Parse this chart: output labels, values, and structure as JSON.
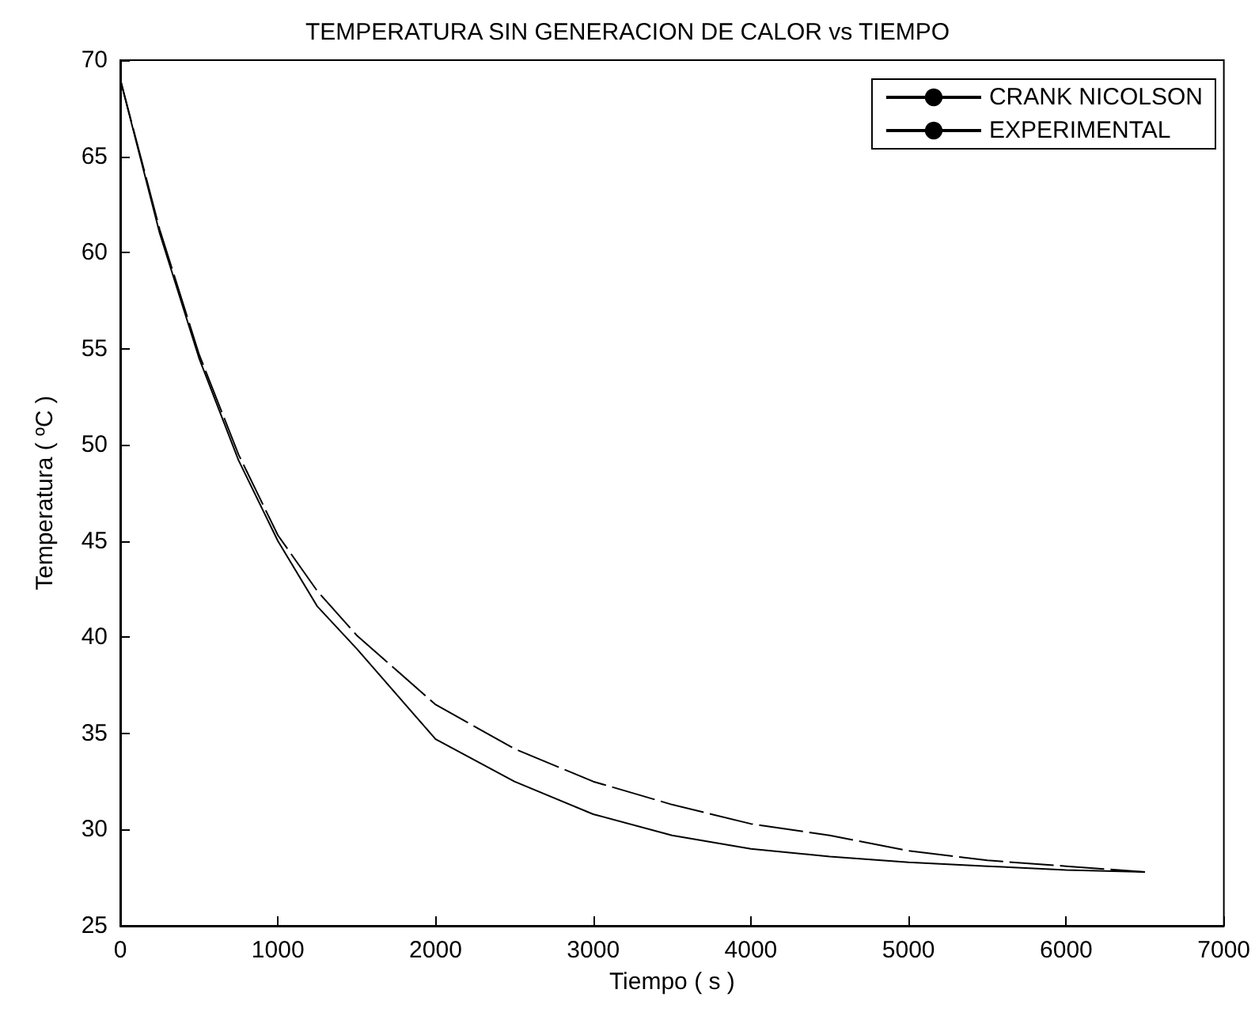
{
  "chart_data": {
    "type": "line",
    "title": "TEMPERATURA SIN GENERACION DE CALOR vs TIEMPO",
    "xlabel": "Tiempo ( s )",
    "ylabel": "Temperatura ( ºC )",
    "x": [
      0,
      250,
      500,
      750,
      1000,
      1250,
      1500,
      2000,
      2500,
      3000,
      3500,
      4000,
      4500,
      5000,
      5500,
      6000,
      6500
    ],
    "series": [
      {
        "name": "CRANK NICOLSON",
        "color": "#000000",
        "line_style": "solid",
        "values": [
          69,
          61,
          54.5,
          49.2,
          45,
          41.6,
          39.4,
          34.7,
          32.5,
          30.8,
          29.7,
          29.0,
          28.6,
          28.3,
          28.1,
          27.9,
          27.8
        ]
      },
      {
        "name": "EXPERIMENTAL",
        "color": "#000000",
        "line_style": "dashed",
        "values": [
          69,
          61.2,
          54.7,
          49.5,
          45.3,
          42.4,
          40.1,
          36.5,
          34.2,
          32.5,
          31.3,
          30.3,
          29.7,
          28.9,
          28.4,
          28.1,
          27.8
        ]
      }
    ],
    "xlim": [
      0,
      7000
    ],
    "xticks": [
      0,
      1000,
      2000,
      3000,
      4000,
      5000,
      6000,
      7000
    ],
    "ylim": [
      25,
      70
    ],
    "yticks": [
      25,
      30,
      35,
      40,
      45,
      50,
      55,
      60,
      65,
      70
    ],
    "grid": false,
    "legend": "top right",
    "marker": "none"
  }
}
